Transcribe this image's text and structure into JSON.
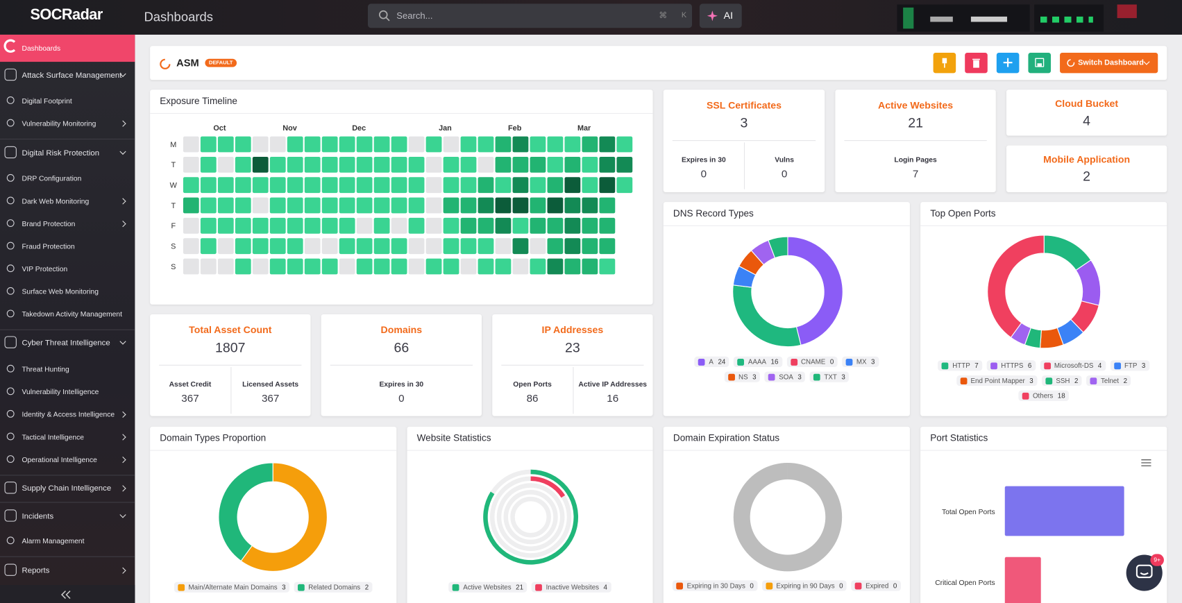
{
  "header": {
    "logo": "SOCRadar",
    "title": "Dashboards",
    "search": "Search...",
    "keys": [
      "⌘",
      "K"
    ],
    "ai": "AI",
    "chat_badge": "9+"
  },
  "sidebar": [
    {
      "label": "Dashboards",
      "kind": "item",
      "active": true
    },
    {
      "label": "Attack Surface Management",
      "kind": "section",
      "arrow": "down"
    },
    {
      "label": "Digital Footprint",
      "kind": "item"
    },
    {
      "label": "Vulnerability Monitoring",
      "kind": "item",
      "arrow": "right"
    },
    {
      "label": "Digital Risk Protection",
      "kind": "section",
      "arrow": "down"
    },
    {
      "label": "DRP Configuration",
      "kind": "item"
    },
    {
      "label": "Dark Web Monitoring",
      "kind": "item",
      "arrow": "right"
    },
    {
      "label": "Brand Protection",
      "kind": "item",
      "arrow": "right"
    },
    {
      "label": "Fraud Protection",
      "kind": "item"
    },
    {
      "label": "VIP Protection",
      "kind": "item"
    },
    {
      "label": "Surface Web Monitoring",
      "kind": "item"
    },
    {
      "label": "Takedown Activity Management",
      "kind": "item"
    },
    {
      "label": "Cyber Threat Intelligence",
      "kind": "section",
      "arrow": "down"
    },
    {
      "label": "Threat Hunting",
      "kind": "item"
    },
    {
      "label": "Vulnerability Intelligence",
      "kind": "item"
    },
    {
      "label": "Identity & Access Intelligence",
      "kind": "item",
      "arrow": "right"
    },
    {
      "label": "Tactical Intelligence",
      "kind": "item",
      "arrow": "right"
    },
    {
      "label": "Operational Intelligence",
      "kind": "item",
      "arrow": "right"
    },
    {
      "label": "Supply Chain Intelligence",
      "kind": "section",
      "arrow": "right"
    },
    {
      "label": "Incidents",
      "kind": "section",
      "arrow": "down"
    },
    {
      "label": "Alarm Management",
      "kind": "item"
    },
    {
      "label": "Reports",
      "kind": "section",
      "arrow": "right"
    }
  ],
  "toolbar": {
    "title": "ASM",
    "badge": "DEFAULT",
    "switch": "Switch Dashboard"
  },
  "exposure_timeline": {
    "title": "Exposure Timeline",
    "months": [
      "Oct",
      "Nov",
      "Dec",
      "Jan",
      "Feb",
      "Mar"
    ],
    "days": [
      "M",
      "T",
      "W",
      "T",
      "F",
      "S",
      "S"
    ],
    "level_colors": [
      "#e4e4e6",
      "#3ad492",
      "#22b472",
      "#138a55",
      "#0c5c3a"
    ],
    "levels": [
      [
        0,
        1,
        1,
        1,
        0,
        0,
        1,
        1,
        1,
        1,
        1,
        1,
        1,
        0,
        1,
        0,
        1,
        1,
        2,
        3,
        1,
        1,
        1,
        2,
        3,
        1
      ],
      [
        0,
        1,
        0,
        1,
        4,
        1,
        1,
        1,
        1,
        1,
        1,
        1,
        1,
        1,
        0,
        1,
        1,
        0,
        2,
        2,
        2,
        1,
        2,
        1,
        3,
        3
      ],
      [
        1,
        1,
        1,
        1,
        1,
        1,
        1,
        1,
        1,
        1,
        1,
        1,
        1,
        1,
        0,
        1,
        1,
        2,
        1,
        3,
        1,
        2,
        4,
        1,
        4,
        1
      ],
      [
        2,
        1,
        1,
        1,
        0,
        1,
        1,
        1,
        1,
        1,
        1,
        1,
        1,
        1,
        0,
        2,
        2,
        3,
        4,
        4,
        2,
        4,
        3,
        3,
        2,
        null
      ],
      [
        0,
        1,
        1,
        1,
        1,
        1,
        1,
        1,
        1,
        1,
        0,
        1,
        0,
        1,
        0,
        1,
        2,
        2,
        3,
        1,
        2,
        2,
        3,
        2,
        2,
        null
      ],
      [
        0,
        1,
        0,
        1,
        1,
        1,
        1,
        0,
        0,
        1,
        1,
        1,
        1,
        0,
        0,
        1,
        1,
        1,
        0,
        3,
        0,
        2,
        3,
        2,
        2,
        null
      ],
      [
        0,
        0,
        0,
        1,
        0,
        1,
        1,
        1,
        1,
        0,
        1,
        1,
        1,
        0,
        1,
        1,
        0,
        1,
        1,
        0,
        1,
        3,
        2,
        2,
        1,
        null
      ]
    ]
  },
  "stat_cards": [
    {
      "title": "SSL Certificates",
      "value": 3,
      "details": [
        {
          "label": "Expires in 30",
          "value": 0
        },
        {
          "label": "Vulns",
          "value": 0
        }
      ]
    },
    {
      "title": "Active Websites",
      "value": 21,
      "details": [
        {
          "label": "Login Pages",
          "value": 7
        }
      ]
    },
    {
      "title": "Cloud Bucket",
      "value": 4
    },
    {
      "title": "Mobile Application",
      "value": 2
    },
    {
      "title": "Total Asset Count",
      "value": 1807,
      "details": [
        {
          "label": "Asset Credit",
          "value": 367
        },
        {
          "label": "Licensed Assets",
          "value": 367
        }
      ]
    },
    {
      "title": "Domains",
      "value": 66,
      "details": [
        {
          "label": "Expires in 30",
          "value": 0
        }
      ]
    },
    {
      "title": "IP Addresses",
      "value": 23,
      "details": [
        {
          "label": "Open Ports",
          "value": 86
        },
        {
          "label": "Active IP Addresses",
          "value": 16
        }
      ]
    }
  ],
  "charts": [
    {
      "type": "donut",
      "title": "DNS Record Types",
      "categories": [
        "A",
        "AAAA",
        "CNAME",
        "MX",
        "NS",
        "SOA",
        "TXT"
      ],
      "values": [
        24,
        16,
        0,
        3,
        3,
        3,
        3
      ],
      "colors": [
        "#8b5cf6",
        "#1fb87f",
        "#ef3f5f",
        "#3b82f6",
        "#ea580c",
        "#a064f0",
        "#20b77a"
      ]
    },
    {
      "type": "donut",
      "title": "Top Open Ports",
      "categories": [
        "HTTP",
        "HTTPS",
        "Microsoft-DS",
        "FTP",
        "End Point Mapper",
        "SSH",
        "Telnet",
        "Others"
      ],
      "values": [
        7,
        6,
        4,
        3,
        3,
        2,
        2,
        18
      ],
      "colors": [
        "#1fb87f",
        "#9b5cf0",
        "#ef3f5f",
        "#3b82f6",
        "#ea580c",
        "#20b77a",
        "#a064f0",
        "#f0405f"
      ]
    },
    {
      "type": "donut",
      "title": "Domain Types Proportion",
      "categories": [
        "Main/Alternate Main Domains",
        "Related Domains"
      ],
      "values": [
        3,
        2
      ],
      "colors": [
        "#f59e0b",
        "#20b77a"
      ]
    },
    {
      "type": "radial",
      "title": "Website Statistics",
      "categories": [
        "Active Websites",
        "Inactive Websites"
      ],
      "values": [
        21,
        4
      ],
      "colors": [
        "#20b77a",
        "#ef3f5f"
      ]
    },
    {
      "type": "donut",
      "title": "Domain Expiration Status",
      "categories": [
        "Expiring in 30 Days",
        "Expiring in 90 Days",
        "Expired"
      ],
      "values": [
        0,
        0,
        0
      ],
      "colors": [
        "#ea580c",
        "#f59e0b",
        "#ef3f5f"
      ]
    },
    {
      "type": "hbar",
      "title": "Port Statistics",
      "categories": [
        "Total Open Ports",
        "Critical Open Ports"
      ],
      "values": [
        86,
        26
      ],
      "colors": [
        "#7c74ee",
        "#f0587a"
      ]
    }
  ]
}
